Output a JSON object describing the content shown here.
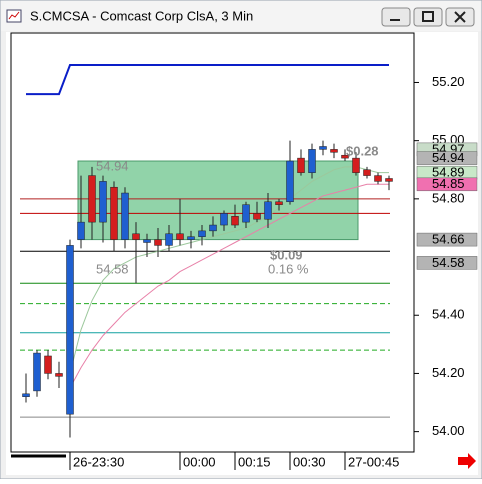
{
  "chart_data": {
    "type": "candlestick",
    "title": "S.CMCSA - Comcast Corp ClsA, 3 Min",
    "categories": [
      null,
      null,
      null,
      null,
      "26-23:30",
      null,
      null,
      null,
      null,
      null,
      null,
      null,
      null,
      null,
      "00:00",
      null,
      null,
      null,
      null,
      "00:15",
      null,
      null,
      null,
      null,
      "00:30",
      null,
      null,
      null,
      null,
      "27-00:45",
      null,
      null,
      null,
      null
    ],
    "open": [
      54.12,
      54.14,
      54.26,
      54.2,
      54.06,
      54.66,
      54.88,
      54.72,
      54.84,
      54.66,
      54.68,
      54.65,
      54.66,
      54.64,
      54.68,
      54.66,
      54.67,
      54.69,
      54.71,
      54.74,
      54.72,
      54.75,
      54.73,
      54.79,
      54.79,
      54.94,
      54.89,
      54.97,
      54.97,
      54.95,
      54.94,
      54.9,
      54.88,
      54.87
    ],
    "high": [
      54.2,
      54.28,
      54.28,
      54.24,
      54.66,
      54.88,
      54.91,
      54.88,
      54.86,
      54.84,
      54.72,
      54.68,
      54.7,
      54.71,
      54.8,
      54.69,
      54.71,
      54.74,
      54.76,
      54.78,
      54.79,
      54.79,
      54.82,
      54.8,
      55.0,
      54.97,
      54.99,
      55.0,
      54.99,
      54.97,
      54.96,
      54.91,
      54.89,
      54.88
    ],
    "low": [
      54.1,
      54.12,
      54.18,
      54.15,
      53.98,
      54.63,
      54.66,
      54.65,
      54.62,
      54.63,
      54.51,
      54.6,
      54.6,
      54.62,
      54.64,
      54.63,
      54.64,
      54.67,
      54.69,
      54.7,
      54.7,
      54.72,
      54.7,
      54.76,
      54.78,
      54.88,
      54.87,
      54.95,
      54.94,
      54.93,
      54.88,
      54.87,
      54.85,
      54.83
    ],
    "close": [
      54.13,
      54.27,
      54.2,
      54.19,
      54.64,
      54.72,
      54.72,
      54.86,
      54.66,
      54.82,
      54.66,
      54.66,
      54.64,
      54.68,
      54.66,
      54.67,
      54.69,
      54.71,
      54.75,
      54.71,
      54.78,
      54.73,
      54.79,
      54.78,
      54.93,
      54.89,
      54.97,
      54.98,
      54.96,
      54.94,
      54.89,
      54.88,
      54.86,
      54.86
    ],
    "up_color": "#1f5fd0",
    "down_color": "#d41e1e",
    "series": [
      {
        "color": "#0a1ec8",
        "values": [
          55.16,
          55.16,
          55.16,
          55.16,
          55.26,
          55.26,
          55.26,
          55.26,
          55.26,
          55.26,
          55.26,
          55.26,
          55.26,
          55.26,
          55.26,
          55.26,
          55.26,
          55.26,
          55.26,
          55.26,
          55.26,
          55.26,
          55.26,
          55.26,
          55.26,
          55.26,
          55.26,
          55.26,
          55.26,
          55.26,
          55.26,
          55.26,
          55.26,
          55.26
        ]
      },
      {
        "color": "#9cc89c",
        "values": [
          null,
          null,
          null,
          null,
          54.2,
          54.35,
          54.45,
          54.52,
          54.56,
          54.58,
          54.6,
          54.61,
          54.62,
          54.63,
          54.64,
          54.65,
          54.66,
          54.67,
          54.68,
          54.69,
          54.7,
          54.72,
          54.74,
          54.77,
          54.8,
          54.83,
          54.86,
          54.88,
          54.9,
          54.91,
          54.91,
          54.9,
          54.89,
          54.89
        ]
      },
      {
        "color": "#e880a8",
        "values": [
          null,
          null,
          null,
          null,
          54.15,
          54.22,
          54.28,
          54.33,
          54.37,
          54.41,
          54.44,
          54.47,
          54.5,
          54.52,
          54.55,
          54.57,
          54.59,
          54.61,
          54.63,
          54.65,
          54.67,
          54.69,
          54.71,
          54.73,
          54.75,
          54.77,
          54.79,
          54.81,
          54.82,
          54.83,
          54.84,
          54.85,
          54.85,
          54.85
        ]
      }
    ],
    "levels": [
      {
        "value": 54.8,
        "color": "#b22222",
        "dashed": false
      },
      {
        "value": 54.75,
        "color": "#c00000",
        "dashed": false
      },
      {
        "value": 54.62,
        "color": "#000000",
        "dashed": false
      },
      {
        "value": 54.51,
        "color": "#118811",
        "dashed": false
      },
      {
        "value": 54.44,
        "color": "#22aa22",
        "dashed": true
      },
      {
        "value": 54.34,
        "color": "#10a0a0",
        "dashed": false
      },
      {
        "value": 54.28,
        "color": "#22aa22",
        "dashed": true
      },
      {
        "value": 54.05,
        "color": "#888888",
        "dashed": false
      }
    ],
    "zone": {
      "from": 54.66,
      "to": 54.93,
      "color": "#6cc48c"
    },
    "annotations": [
      {
        "text": "54.94"
      },
      {
        "text": "54.58"
      },
      {
        "text": "$0.09"
      },
      {
        "text": "0.16 %"
      },
      {
        "text": "$0.28"
      }
    ],
    "price_labels": [
      {
        "value": 54.97,
        "color": "#c8dcc8"
      },
      {
        "value": 54.94,
        "color": "#b4b4b4"
      },
      {
        "value": 54.89,
        "color": "#c8e8c8"
      },
      {
        "value": 54.85,
        "color": "#f070b0"
      },
      {
        "value": 54.66,
        "color": "#b4b4b4"
      },
      {
        "value": 54.58,
        "color": "#b4b4b4"
      }
    ],
    "ylim": [
      53.93,
      55.37
    ],
    "yticks": [
      {
        "value": 54.0,
        "label": "54.00"
      },
      {
        "value": 54.2,
        "label": "54.20"
      },
      {
        "value": 54.4,
        "label": "54.40"
      },
      {
        "value": 54.8,
        "label": "54.80"
      },
      {
        "value": 55.0,
        "label": "55.00"
      },
      {
        "value": 55.2,
        "label": "55.20"
      }
    ]
  }
}
